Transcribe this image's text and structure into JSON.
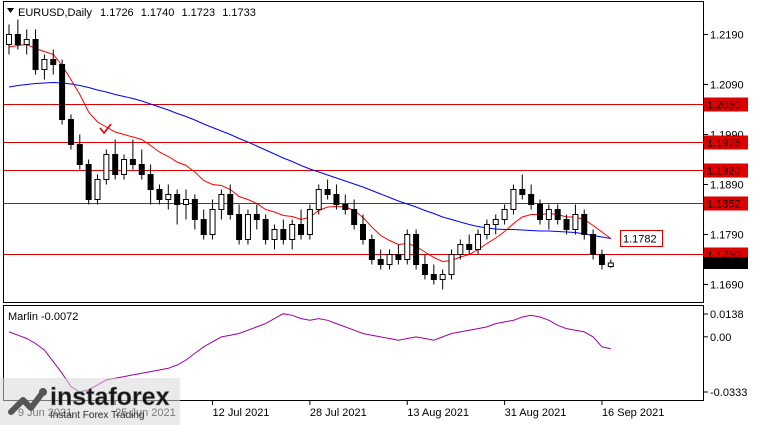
{
  "header": {
    "title": "EURUSD,Daily",
    "open": "1.1726",
    "high": "1.1740",
    "low": "1.1723",
    "close": "1.1733"
  },
  "colors": {
    "candle": "#000000",
    "bull_fill": "#ffffff",
    "bear_fill": "#000000",
    "level_line": "#dd0000",
    "ma_fast": "#ff0000",
    "ma_slow": "#0000ff",
    "oscillator": "#a000a0",
    "axis": "#000000",
    "tag_text": "#ffffff"
  },
  "indicator": {
    "label": "Marlin -0.0072",
    "value": -0.0072,
    "axis_ticks": [
      "0.0138",
      "0.00",
      "-0.0333"
    ],
    "ylim": [
      -0.0333,
      0.0138
    ]
  },
  "checkmark_icon": "red-checkmark-icon",
  "watermark": {
    "brand": "instaforex",
    "tagline": "Instant Forex Trading",
    "icon": "instaforex-logo-icon"
  },
  "chart_data": [
    {
      "type": "candlestick",
      "title": "EURUSD,Daily",
      "ylim": [
        1.1655,
        1.2255
      ],
      "y_ticks": [
        {
          "value": 1.219,
          "label": "1.2190"
        },
        {
          "value": 1.209,
          "label": "1.2090"
        },
        {
          "value": 1.199,
          "label": "1.1990"
        },
        {
          "value": 1.189,
          "label": "1.1890"
        },
        {
          "value": 1.179,
          "label": "1.1790"
        },
        {
          "value": 1.169,
          "label": "1.1690"
        }
      ],
      "x_tick_labels": [
        "9 Jun 2021",
        "25 Jun 2021",
        "12 Jul 2021",
        "28 Jul 2021",
        "13 Aug 2021",
        "31 Aug 2021",
        "16 Sep 2021"
      ],
      "x_tick_bars": [
        1,
        12,
        23,
        34,
        45,
        56,
        67
      ],
      "levels": [
        {
          "value": 1.205,
          "label": "1.2050"
        },
        {
          "value": 1.1975,
          "label": "1.1975"
        },
        {
          "value": 1.192,
          "label": "1.1920"
        },
        {
          "value": 1.1852,
          "label": "1.1852"
        },
        {
          "value": 1.175,
          "label": "1.1750"
        }
      ],
      "ma_tag": {
        "value": 1.1782,
        "label": "1.1782"
      },
      "price_tag": {
        "value": 1.1733,
        "label": "1.1733"
      },
      "candles": [
        [
          1.217,
          1.221,
          1.215,
          1.219
        ],
        [
          1.219,
          1.222,
          1.216,
          1.217
        ],
        [
          1.217,
          1.22,
          1.215,
          1.218
        ],
        [
          1.218,
          1.22,
          1.211,
          1.212
        ],
        [
          1.212,
          1.215,
          1.21,
          1.214
        ],
        [
          1.214,
          1.216,
          1.211,
          1.213
        ],
        [
          1.213,
          1.214,
          1.201,
          1.202
        ],
        [
          1.202,
          1.203,
          1.196,
          1.197
        ],
        [
          1.197,
          1.199,
          1.192,
          1.193
        ],
        [
          1.193,
          1.194,
          1.185,
          1.186
        ],
        [
          1.186,
          1.191,
          1.185,
          1.19
        ],
        [
          1.19,
          1.196,
          1.189,
          1.195
        ],
        [
          1.195,
          1.198,
          1.19,
          1.191
        ],
        [
          1.191,
          1.195,
          1.19,
          1.194
        ],
        [
          1.194,
          1.198,
          1.192,
          1.193
        ],
        [
          1.193,
          1.196,
          1.19,
          1.191
        ],
        [
          1.191,
          1.193,
          1.185,
          1.188
        ],
        [
          1.188,
          1.189,
          1.185,
          1.186
        ],
        [
          1.186,
          1.189,
          1.184,
          1.187
        ],
        [
          1.187,
          1.188,
          1.181,
          1.185
        ],
        [
          1.185,
          1.188,
          1.182,
          1.186
        ],
        [
          1.186,
          1.187,
          1.18,
          1.182
        ],
        [
          1.182,
          1.184,
          1.178,
          1.179
        ],
        [
          1.179,
          1.186,
          1.178,
          1.184
        ],
        [
          1.184,
          1.188,
          1.182,
          1.187
        ],
        [
          1.187,
          1.189,
          1.182,
          1.183
        ],
        [
          1.183,
          1.185,
          1.177,
          1.178
        ],
        [
          1.178,
          1.184,
          1.177,
          1.183
        ],
        [
          1.183,
          1.185,
          1.18,
          1.182
        ],
        [
          1.182,
          1.183,
          1.177,
          1.178
        ],
        [
          1.178,
          1.181,
          1.176,
          1.18
        ],
        [
          1.18,
          1.182,
          1.177,
          1.178
        ],
        [
          1.178,
          1.182,
          1.176,
          1.181
        ],
        [
          1.181,
          1.184,
          1.178,
          1.179
        ],
        [
          1.179,
          1.185,
          1.178,
          1.184
        ],
        [
          1.184,
          1.189,
          1.183,
          1.188
        ],
        [
          1.188,
          1.19,
          1.186,
          1.187
        ],
        [
          1.187,
          1.189,
          1.184,
          1.185
        ],
        [
          1.185,
          1.187,
          1.183,
          1.184
        ],
        [
          1.184,
          1.186,
          1.18,
          1.181
        ],
        [
          1.181,
          1.183,
          1.177,
          1.178
        ],
        [
          1.178,
          1.179,
          1.173,
          1.174
        ],
        [
          1.174,
          1.176,
          1.172,
          1.173
        ],
        [
          1.173,
          1.176,
          1.172,
          1.175
        ],
        [
          1.175,
          1.177,
          1.173,
          1.174
        ],
        [
          1.174,
          1.18,
          1.173,
          1.179
        ],
        [
          1.179,
          1.18,
          1.172,
          1.173
        ],
        [
          1.173,
          1.175,
          1.17,
          1.171
        ],
        [
          1.171,
          1.173,
          1.169,
          1.17
        ],
        [
          1.17,
          1.172,
          1.168,
          1.171
        ],
        [
          1.171,
          1.176,
          1.17,
          1.175
        ],
        [
          1.175,
          1.178,
          1.174,
          1.177
        ],
        [
          1.177,
          1.179,
          1.175,
          1.176
        ],
        [
          1.176,
          1.18,
          1.175,
          1.179
        ],
        [
          1.179,
          1.182,
          1.178,
          1.181
        ],
        [
          1.181,
          1.183,
          1.179,
          1.182
        ],
        [
          1.182,
          1.185,
          1.181,
          1.184
        ],
        [
          1.184,
          1.189,
          1.183,
          1.188
        ],
        [
          1.188,
          1.191,
          1.186,
          1.187
        ],
        [
          1.187,
          1.189,
          1.184,
          1.185
        ],
        [
          1.185,
          1.186,
          1.181,
          1.182
        ],
        [
          1.182,
          1.185,
          1.18,
          1.184
        ],
        [
          1.184,
          1.185,
          1.181,
          1.182
        ],
        [
          1.182,
          1.183,
          1.179,
          1.18
        ],
        [
          1.18,
          1.185,
          1.179,
          1.183
        ],
        [
          1.183,
          1.184,
          1.178,
          1.179
        ],
        [
          1.179,
          1.18,
          1.174,
          1.175
        ],
        [
          1.175,
          1.176,
          1.172,
          1.173
        ],
        [
          1.1726,
          1.174,
          1.1723,
          1.1733
        ]
      ],
      "ma_fast": [
        1.2165,
        1.2168,
        1.217,
        1.2162,
        1.2156,
        1.215,
        1.2128,
        1.21,
        1.207,
        1.2035,
        1.2015,
        1.2005,
        1.1995,
        1.199,
        1.1985,
        1.198,
        1.1968,
        1.1955,
        1.1946,
        1.1935,
        1.1928,
        1.1915,
        1.1898,
        1.189,
        1.1888,
        1.188,
        1.1866,
        1.186,
        1.1852,
        1.184,
        1.1835,
        1.1828,
        1.1826,
        1.182,
        1.1825,
        1.1838,
        1.1845,
        1.1846,
        1.1845,
        1.1838,
        1.1824,
        1.1805,
        1.1788,
        1.1778,
        1.177,
        1.1772,
        1.1766,
        1.1755,
        1.1744,
        1.1736,
        1.1738,
        1.1745,
        1.175,
        1.176,
        1.1772,
        1.1783,
        1.1796,
        1.1812,
        1.1825,
        1.183,
        1.183,
        1.1832,
        1.183,
        1.1825,
        1.1825,
        1.182,
        1.1808,
        1.1795,
        1.1782
      ],
      "ma_slow": [
        1.2085,
        1.2088,
        1.209,
        1.2092,
        1.2093,
        1.2094,
        1.2093,
        1.2091,
        1.2088,
        1.2084,
        1.2079,
        1.2075,
        1.207,
        1.2066,
        1.2062,
        1.2057,
        1.2051,
        1.2045,
        1.2039,
        1.2032,
        1.2026,
        1.2019,
        1.2011,
        1.2004,
        1.1997,
        1.199,
        1.1982,
        1.1975,
        1.1967,
        1.1959,
        1.1951,
        1.1943,
        1.1936,
        1.1928,
        1.1921,
        1.1915,
        1.1909,
        1.1903,
        1.1897,
        1.1891,
        1.1885,
        1.1878,
        1.1871,
        1.1864,
        1.1857,
        1.1851,
        1.1845,
        1.1838,
        1.1832,
        1.1825,
        1.182,
        1.1815,
        1.181,
        1.1806,
        1.1803,
        1.1801,
        1.18,
        1.18,
        1.1799,
        1.1798,
        1.1797,
        1.1797,
        1.1796,
        1.1795,
        1.1794,
        1.1791,
        1.1788,
        1.1785,
        1.1782
      ],
      "oscillator": [
        0.003,
        0.001,
        -0.001,
        -0.004,
        -0.008,
        -0.015,
        -0.022,
        -0.03,
        -0.0333,
        -0.032,
        -0.029,
        -0.026,
        -0.025,
        -0.024,
        -0.023,
        -0.022,
        -0.021,
        -0.02,
        -0.019,
        -0.017,
        -0.014,
        -0.01,
        -0.006,
        -0.003,
        0.0,
        0.001,
        0.002,
        0.004,
        0.006,
        0.008,
        0.011,
        0.014,
        0.013,
        0.011,
        0.01,
        0.011,
        0.01,
        0.008,
        0.006,
        0.004,
        0.002,
        0.001,
        0.0,
        -0.001,
        -0.002,
        -0.001,
        0.0,
        -0.001,
        -0.002,
        0.0,
        0.002,
        0.003,
        0.004,
        0.005,
        0.006,
        0.008,
        0.009,
        0.01,
        0.012,
        0.013,
        0.012,
        0.01,
        0.007,
        0.005,
        0.004,
        0.003,
        0.0,
        -0.006,
        -0.0072
      ]
    }
  ]
}
